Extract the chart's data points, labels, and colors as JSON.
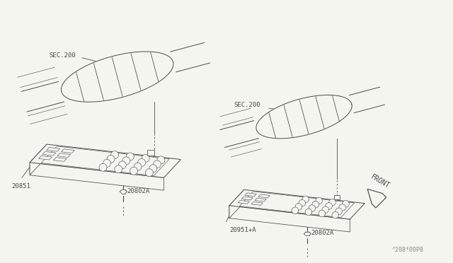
{
  "background_color": "#f5f5f0",
  "fig_width": 6.4,
  "fig_height": 3.72,
  "dpi": 100,
  "line_color": "#4a4a4a",
  "line_width": 0.7,
  "font_size": 6.5,
  "watermark_color": "#888888",
  "labels": {
    "sec200_left": "SEC.200",
    "sec200_right": "SEC.200",
    "part_left_bolt": "20802A",
    "part_left_shield": "20851",
    "part_right_bolt": "20802A",
    "part_right_shield": "20951+A",
    "front": "FRONT",
    "watermark": "^208*00P8"
  }
}
